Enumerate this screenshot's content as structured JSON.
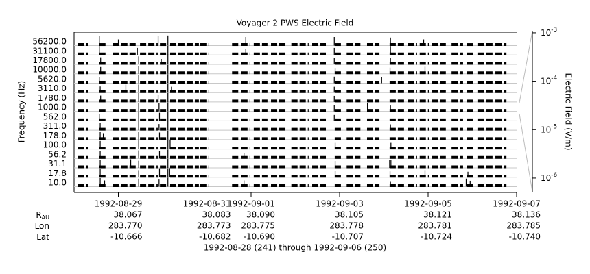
{
  "chart_data": {
    "type": "stacked-trace",
    "title": "Voyager 2 PWS Electric Field",
    "y_label": "Frequency (Hz)",
    "y2_label": "Electric Field (V/m)",
    "footer": "1992-08-28 (241) through 1992-09-06 (250)",
    "xlim": [
      241,
      251
    ],
    "xticks": [
      {
        "value": 242,
        "label": "1992-08-29"
      },
      {
        "value": 244,
        "label": "1992-08-31"
      },
      {
        "value": 245,
        "label": "1992-09-01"
      },
      {
        "value": 247,
        "label": "1992-09-03"
      },
      {
        "value": 249,
        "label": "1992-09-05"
      },
      {
        "value": 251,
        "label": "1992-09-07"
      }
    ],
    "y2_log": true,
    "y2lim": [
      5.2e-07,
      0.0011
    ],
    "y2ticks": [
      {
        "value": 0.001,
        "label": "10",
        "exponent": "-3"
      },
      {
        "value": 0.0001,
        "label": "10",
        "exponent": "-4"
      },
      {
        "value": 1e-05,
        "label": "10",
        "exponent": "-5"
      },
      {
        "value": 1e-06,
        "label": "10",
        "exponent": "-6"
      }
    ],
    "coverage": [
      [
        241.08,
        241.31
      ],
      [
        241.57,
        241.73
      ],
      [
        241.88,
        242.43
      ],
      [
        242.49,
        242.89
      ],
      [
        242.94,
        243.09
      ],
      [
        243.17,
        243.82
      ],
      [
        243.85,
        244.05
      ],
      [
        244.57,
        244.72
      ],
      [
        244.78,
        244.98
      ],
      [
        245.06,
        245.37
      ],
      [
        245.45,
        245.81
      ],
      [
        245.91,
        246.3
      ],
      [
        246.38,
        246.69
      ],
      [
        246.89,
        247.05
      ],
      [
        247.16,
        247.47
      ],
      [
        247.62,
        247.9
      ],
      [
        248.13,
        248.47
      ],
      [
        248.55,
        248.75
      ],
      [
        248.81,
        249.02
      ],
      [
        249.09,
        249.4
      ],
      [
        249.53,
        249.79
      ],
      [
        249.87,
        250.05
      ],
      [
        250.13,
        250.46
      ],
      [
        250.52,
        250.77
      ]
    ],
    "series": [
      {
        "name": "10.0",
        "x": [
          241.59,
          241.69,
          242.46,
          242.92,
          243.12,
          244.84,
          248.15,
          249.86,
          249.95
        ],
        "values": [
          0.0003,
          5e-05,
          0.0002,
          0.0001,
          0.0006,
          5e-05,
          3e-05,
          0.0002,
          4e-05
        ]
      },
      {
        "name": "17.8",
        "x": [
          241.59,
          242.46,
          242.93,
          243.12,
          243.16,
          246.9,
          248.14,
          248.93,
          249.9
        ],
        "values": [
          0.0002,
          0.0001,
          0.0004,
          0.0007,
          0.0005,
          6e-05,
          4e-05,
          0.0001,
          3e-05
        ]
      },
      {
        "name": "31.1",
        "x": [
          241.59,
          242.28,
          242.46,
          243.12,
          246.9,
          248.13,
          248.16
        ],
        "values": [
          0.0002,
          0.0003,
          0.0001,
          0.0006,
          8e-05,
          0.0002,
          0.0002
        ]
      },
      {
        "name": "56.2",
        "x": [
          241.59,
          242.46,
          242.93,
          243.12,
          244.84
        ],
        "values": [
          0.0001,
          0.0002,
          0.0001,
          0.0004,
          3e-05
        ]
      },
      {
        "name": "100.0",
        "x": [
          241.59,
          242.46,
          243.12,
          243.17,
          246.9,
          248.16
        ],
        "values": [
          0.0002,
          0.0003,
          0.0006,
          0.0004,
          5e-05,
          5e-05
        ]
      },
      {
        "name": "178.0",
        "x": [
          241.59,
          241.66,
          242.46,
          242.93,
          243.12
        ],
        "values": [
          0.0002,
          6e-05,
          0.0002,
          0.0001,
          0.0005
        ]
      },
      {
        "name": "311.0",
        "x": [
          241.59,
          242.46,
          242.92,
          243.12,
          248.15
        ],
        "values": [
          0.0001,
          0.0004,
          5e-05,
          0.0006,
          4e-05
        ]
      },
      {
        "name": "562.0",
        "x": [
          241.57,
          242.46,
          242.93,
          243.12,
          246.88
        ],
        "values": [
          8e-05,
          0.0006,
          0.0002,
          0.0007,
          4e-05
        ]
      },
      {
        "name": "1000.0",
        "x": [
          242.46,
          242.92,
          243.12,
          246.88,
          247.63,
          248.15
        ],
        "values": [
          0.0003,
          0.0002,
          0.0008,
          5e-05,
          0.0003,
          4e-05
        ]
      },
      {
        "name": "1780.0",
        "x": [
          241.6,
          242.46,
          242.9,
          243.12,
          246.88
        ],
        "values": [
          6e-05,
          0.0004,
          0.0001,
          0.0008,
          5e-05
        ]
      },
      {
        "name": "3110.0",
        "x": [
          241.59,
          242.17,
          242.46,
          243.12,
          243.2,
          246.88
        ],
        "values": [
          5e-05,
          0.0002,
          0.0002,
          0.0009,
          4e-05,
          4e-05
        ]
      },
      {
        "name": "5620.0",
        "x": [
          241.57,
          242.46,
          243.12,
          246.88,
          247.95
        ],
        "values": [
          6e-05,
          0.0003,
          0.0009,
          7e-05,
          4e-05
        ]
      },
      {
        "name": "10000.0",
        "x": [
          241.6,
          242.46,
          243.12,
          246.9,
          248.14,
          248.93
        ],
        "values": [
          8e-05,
          0.0002,
          0.0009,
          4e-05,
          5e-05,
          0.0001
        ]
      },
      {
        "name": "17800.0",
        "x": [
          241.6,
          242.46,
          242.97,
          243.12,
          246.88,
          248.15
        ],
        "values": [
          0.0001,
          0.0002,
          3e-05,
          0.0009,
          6e-05,
          8e-05
        ]
      },
      {
        "name": "31100.0",
        "x": [
          241.57,
          242.43,
          243.12,
          244.88,
          246.88,
          248.15
        ],
        "values": [
          0.0004,
          0.0001,
          0.0009,
          5e-05,
          0.0001,
          0.0004
        ]
      },
      {
        "name": "56200.0",
        "x": [
          241.57,
          242.0,
          242.9,
          243.12,
          244.88,
          246.88,
          248.15,
          248.9
        ],
        "values": [
          0.0005,
          5e-05,
          0.0006,
          0.0009,
          0.0003,
          0.0003,
          0.0002,
          5e-05
        ]
      }
    ],
    "ephemeris": [
      {
        "label": "R",
        "sub": "AU",
        "values": [
          "38.067",
          "38.083",
          "38.090",
          "38.105",
          "38.121",
          "38.136"
        ]
      },
      {
        "label": "Lon",
        "values": [
          "283.770",
          "283.773",
          "283.775",
          "283.778",
          "283.781",
          "283.785"
        ]
      },
      {
        "label": "Lat",
        "values": [
          "-10.666",
          "-10.682",
          "-10.690",
          "-10.707",
          "-10.724",
          "-10.740"
        ]
      }
    ]
  }
}
